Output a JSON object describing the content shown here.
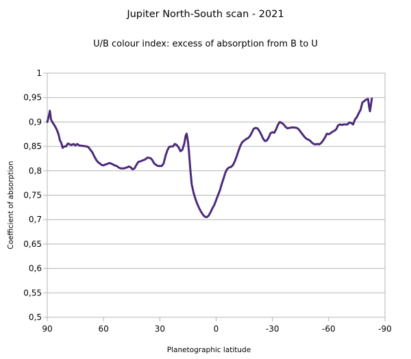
{
  "chart_data": {
    "type": "line",
    "title": "Jupiter North-South scan - 2021",
    "subtitle": "U/B colour index: excess of absorption from B to U",
    "xlabel": "Planetographic latitude",
    "ylabel": "Coefficient of absorption",
    "xlim": [
      90,
      -90
    ],
    "ylim": [
      0.5,
      1
    ],
    "x_ticks": [
      90,
      60,
      30,
      0,
      -30,
      -60,
      -90
    ],
    "y_ticks": [
      0.5,
      0.55,
      0.6,
      0.65,
      0.7,
      0.75,
      0.8,
      0.85,
      0.9,
      0.95,
      1
    ],
    "x_tick_labels": [
      "90",
      "60",
      "30",
      "0",
      "-30",
      "-60",
      "-90"
    ],
    "y_tick_labels": [
      "0,5",
      "0,55",
      "0,6",
      "0,65",
      "0,7",
      "0,75",
      "0,8",
      "0,85",
      "0,9",
      "0,95",
      "1"
    ],
    "grid": "y-major",
    "legend": "none",
    "series_color": "#4b2a7a",
    "series": [
      {
        "points": [
          [
            90,
            0.9
          ],
          [
            89.3,
            0.91
          ],
          [
            88.6,
            0.923
          ],
          [
            88,
            0.905
          ],
          [
            87,
            0.898
          ],
          [
            86,
            0.892
          ],
          [
            85,
            0.885
          ],
          [
            84,
            0.875
          ],
          [
            83.2,
            0.862
          ],
          [
            82.5,
            0.857
          ],
          [
            81.8,
            0.847
          ],
          [
            81,
            0.85
          ],
          [
            80,
            0.85
          ],
          [
            79,
            0.856
          ],
          [
            78,
            0.854
          ],
          [
            77,
            0.853
          ],
          [
            76,
            0.855
          ],
          [
            75,
            0.852
          ],
          [
            74,
            0.855
          ],
          [
            73,
            0.852
          ],
          [
            71,
            0.851
          ],
          [
            69,
            0.85
          ],
          [
            68,
            0.848
          ],
          [
            67,
            0.843
          ],
          [
            66,
            0.838
          ],
          [
            65,
            0.83
          ],
          [
            64,
            0.823
          ],
          [
            63,
            0.818
          ],
          [
            62,
            0.815
          ],
          [
            61,
            0.812
          ],
          [
            60,
            0.811
          ],
          [
            59,
            0.813
          ],
          [
            58,
            0.814
          ],
          [
            57,
            0.816
          ],
          [
            56,
            0.815
          ],
          [
            55,
            0.813
          ],
          [
            54,
            0.811
          ],
          [
            53,
            0.81
          ],
          [
            52,
            0.807
          ],
          [
            51,
            0.805
          ],
          [
            49,
            0.805
          ],
          [
            47.5,
            0.807
          ],
          [
            46.5,
            0.809
          ],
          [
            45.5,
            0.807
          ],
          [
            44.5,
            0.803
          ],
          [
            43.5,
            0.805
          ],
          [
            42.5,
            0.812
          ],
          [
            41.5,
            0.818
          ],
          [
            40,
            0.82
          ],
          [
            38,
            0.823
          ],
          [
            36.5,
            0.827
          ],
          [
            35,
            0.826
          ],
          [
            34,
            0.822
          ],
          [
            33,
            0.815
          ],
          [
            32,
            0.812
          ],
          [
            31,
            0.81
          ],
          [
            29,
            0.81
          ],
          [
            28,
            0.815
          ],
          [
            27,
            0.83
          ],
          [
            26,
            0.842
          ],
          [
            25,
            0.849
          ],
          [
            24,
            0.85
          ],
          [
            23,
            0.85
          ],
          [
            22,
            0.855
          ],
          [
            21,
            0.853
          ],
          [
            20,
            0.848
          ],
          [
            19,
            0.84
          ],
          [
            18,
            0.843
          ],
          [
            17,
            0.855
          ],
          [
            16.2,
            0.872
          ],
          [
            15.7,
            0.876
          ],
          [
            15,
            0.86
          ],
          [
            14.5,
            0.84
          ],
          [
            13.7,
            0.8
          ],
          [
            13,
            0.772
          ],
          [
            12,
            0.755
          ],
          [
            11,
            0.742
          ],
          [
            10,
            0.732
          ],
          [
            9,
            0.723
          ],
          [
            8,
            0.716
          ],
          [
            7,
            0.71
          ],
          [
            6,
            0.706
          ],
          [
            5,
            0.705
          ],
          [
            4,
            0.708
          ],
          [
            3,
            0.715
          ],
          [
            2,
            0.723
          ],
          [
            1,
            0.73
          ],
          [
            0,
            0.74
          ],
          [
            -1,
            0.75
          ],
          [
            -2,
            0.76
          ],
          [
            -3,
            0.773
          ],
          [
            -4,
            0.785
          ],
          [
            -5,
            0.797
          ],
          [
            -6,
            0.804
          ],
          [
            -7,
            0.807
          ],
          [
            -8,
            0.808
          ],
          [
            -9,
            0.812
          ],
          [
            -10,
            0.82
          ],
          [
            -11,
            0.83
          ],
          [
            -12,
            0.842
          ],
          [
            -13,
            0.852
          ],
          [
            -14,
            0.859
          ],
          [
            -15,
            0.862
          ],
          [
            -16,
            0.865
          ],
          [
            -17,
            0.867
          ],
          [
            -18,
            0.871
          ],
          [
            -19,
            0.878
          ],
          [
            -20,
            0.886
          ],
          [
            -21,
            0.888
          ],
          [
            -22,
            0.887
          ],
          [
            -23,
            0.882
          ],
          [
            -24,
            0.875
          ],
          [
            -25,
            0.866
          ],
          [
            -26,
            0.861
          ],
          [
            -27,
            0.862
          ],
          [
            -28,
            0.868
          ],
          [
            -29,
            0.877
          ],
          [
            -30,
            0.879
          ],
          [
            -31,
            0.878
          ],
          [
            -32,
            0.885
          ],
          [
            -33,
            0.895
          ],
          [
            -34,
            0.9
          ],
          [
            -35,
            0.898
          ],
          [
            -36,
            0.895
          ],
          [
            -37,
            0.89
          ],
          [
            -38,
            0.887
          ],
          [
            -39,
            0.888
          ],
          [
            -41,
            0.889
          ],
          [
            -43,
            0.888
          ],
          [
            -44,
            0.885
          ],
          [
            -45,
            0.88
          ],
          [
            -46,
            0.875
          ],
          [
            -47,
            0.87
          ],
          [
            -48,
            0.866
          ],
          [
            -49,
            0.864
          ],
          [
            -50,
            0.862
          ],
          [
            -51,
            0.858
          ],
          [
            -52,
            0.855
          ],
          [
            -53,
            0.854
          ],
          [
            -54,
            0.855
          ],
          [
            -55,
            0.854
          ],
          [
            -56,
            0.857
          ],
          [
            -57,
            0.862
          ],
          [
            -58,
            0.868
          ],
          [
            -59,
            0.876
          ],
          [
            -60,
            0.875
          ],
          [
            -61,
            0.877
          ],
          [
            -62,
            0.88
          ],
          [
            -63,
            0.882
          ],
          [
            -64,
            0.885
          ],
          [
            -65,
            0.893
          ],
          [
            -66,
            0.895
          ],
          [
            -67,
            0.894
          ],
          [
            -68,
            0.895
          ],
          [
            -69,
            0.895
          ],
          [
            -70,
            0.895
          ],
          [
            -71,
            0.899
          ],
          [
            -72,
            0.898
          ],
          [
            -73,
            0.895
          ],
          [
            -74,
            0.905
          ],
          [
            -75,
            0.91
          ],
          [
            -76,
            0.918
          ],
          [
            -77,
            0.925
          ],
          [
            -78,
            0.94
          ],
          [
            -79,
            0.943
          ],
          [
            -80,
            0.946
          ],
          [
            -81,
            0.947
          ],
          [
            -81.6,
            0.93
          ],
          [
            -82,
            0.922
          ],
          [
            -82.5,
            0.935
          ],
          [
            -83,
            0.948
          ]
        ]
      }
    ]
  }
}
